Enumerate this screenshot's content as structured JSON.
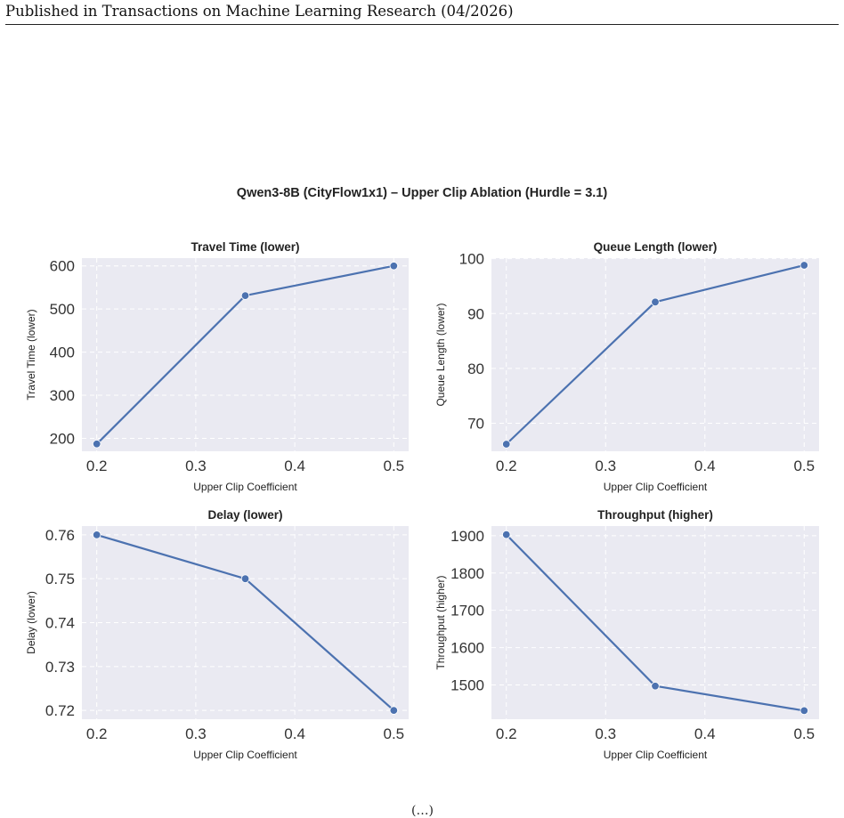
{
  "page": {
    "header": "Published in Transactions on Machine Learning Research (04/2026)",
    "footer_page_number": "(…)"
  },
  "chart_data": {
    "type": "line",
    "title": "Qwen3-8B (CityFlow1x1) – Upper Clip Ablation (Hurdle = 3.1)",
    "grid": true,
    "color": "#4c72b0",
    "background": "#eaeaf2",
    "panels": [
      {
        "title": "Travel Time (lower)",
        "xlabel": "Upper Clip Coefficient",
        "ylabel": "Travel Time (lower)",
        "x": [
          0.2,
          0.35,
          0.5
        ],
        "y": [
          187,
          531,
          600
        ],
        "xlim": [
          0.185,
          0.515
        ],
        "ylim": [
          170,
          618
        ],
        "xticks": [
          "0.2",
          "0.3",
          "0.4",
          "0.5"
        ],
        "yticks": [
          "200",
          "300",
          "400",
          "500",
          "600"
        ]
      },
      {
        "title": "Queue Length (lower)",
        "xlabel": "Upper Clip Coefficient",
        "ylabel": "Queue Length (lower)",
        "x": [
          0.2,
          0.35,
          0.5
        ],
        "y": [
          66.2,
          92.1,
          98.8
        ],
        "xlim": [
          0.185,
          0.515
        ],
        "ylim": [
          64.9,
          100.1
        ],
        "xticks": [
          "0.2",
          "0.3",
          "0.4",
          "0.5"
        ],
        "yticks": [
          "70",
          "80",
          "90",
          "100"
        ]
      },
      {
        "title": "Delay (lower)",
        "xlabel": "Upper Clip Coefficient",
        "ylabel": "Delay (lower)",
        "x": [
          0.2,
          0.35,
          0.5
        ],
        "y": [
          0.76,
          0.75,
          0.72
        ],
        "xlim": [
          0.185,
          0.515
        ],
        "ylim": [
          0.718,
          0.762
        ],
        "xticks": [
          "0.2",
          "0.3",
          "0.4",
          "0.5"
        ],
        "yticks": [
          "0.72",
          "0.73",
          "0.74",
          "0.75",
          "0.76"
        ]
      },
      {
        "title": "Throughput (higher)",
        "xlabel": "Upper Clip Coefficient",
        "ylabel": "Throughput (higher)",
        "x": [
          0.2,
          0.35,
          0.5
        ],
        "y": [
          1903,
          1497,
          1431
        ],
        "xlim": [
          0.185,
          0.515
        ],
        "ylim": [
          1408,
          1926
        ],
        "xticks": [
          "0.2",
          "0.3",
          "0.4",
          "0.5"
        ],
        "yticks": [
          "1500",
          "1600",
          "1700",
          "1800",
          "1900"
        ]
      }
    ]
  }
}
